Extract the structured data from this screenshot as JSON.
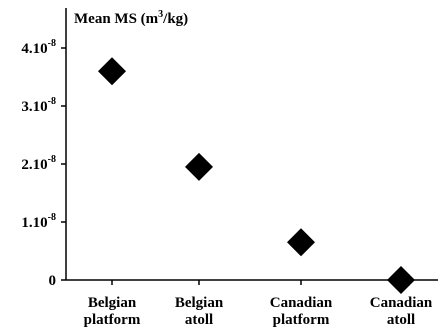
{
  "chart_data": {
    "type": "scatter",
    "ylabel_prefix": "Mean MS (m",
    "ylabel_exp": "3",
    "ylabel_suffix": "/kg)",
    "categories": [
      [
        "Belgian",
        "platform"
      ],
      [
        "Belgian",
        "atoll"
      ],
      [
        "Canadian",
        "platform"
      ],
      [
        "Canadian",
        "atoll"
      ]
    ],
    "values": [
      3.6e-08,
      1.95e-08,
      6.5e-09,
      0.0
    ],
    "ylim": [
      0,
      4.4e-08
    ],
    "yticks": [
      {
        "value": 0,
        "base": "0",
        "exp": ""
      },
      {
        "value": 1e-08,
        "base": "1.10",
        "exp": "-8"
      },
      {
        "value": 2e-08,
        "base": "2.10",
        "exp": "-8"
      },
      {
        "value": 3e-08,
        "base": "3.10",
        "exp": "-8"
      },
      {
        "value": 4e-08,
        "base": "4.10",
        "exp": "-8"
      }
    ],
    "marker": "diamond",
    "marker_color": "#000000",
    "grid": false
  }
}
